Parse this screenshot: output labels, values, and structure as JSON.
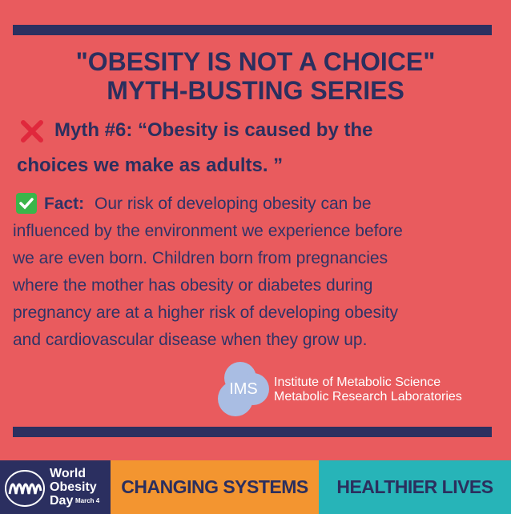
{
  "title": {
    "lines": [
      "\"OBESITY IS NOT A CHOICE\"",
      "MYTH-BUSTING SERIES"
    ]
  },
  "myth": {
    "lines": [
      "Myth #6: “Obesity is caused by the",
      "choices we make as adults. ”"
    ]
  },
  "fact": {
    "label": "Fact:",
    "lines": [
      "Our risk of developing obesity can be",
      "influenced by the environment we experience before",
      "we are even born. Children born from pregnancies",
      "where the mother has obesity or diabetes during",
      "pregnancy are at a higher risk of developing obesity",
      "and cardiovascular disease when they grow up."
    ]
  },
  "logo": {
    "abbreviation": "IMS",
    "lines": [
      "Institute of Metabolic Science",
      "Metabolic Research Laboratories"
    ]
  },
  "footer": {
    "wod": [
      "World",
      "Obesity",
      "Day"
    ],
    "date": "March 4",
    "left": "CHANGING SYSTEMS",
    "right": "HEALTHIER LIVES"
  }
}
